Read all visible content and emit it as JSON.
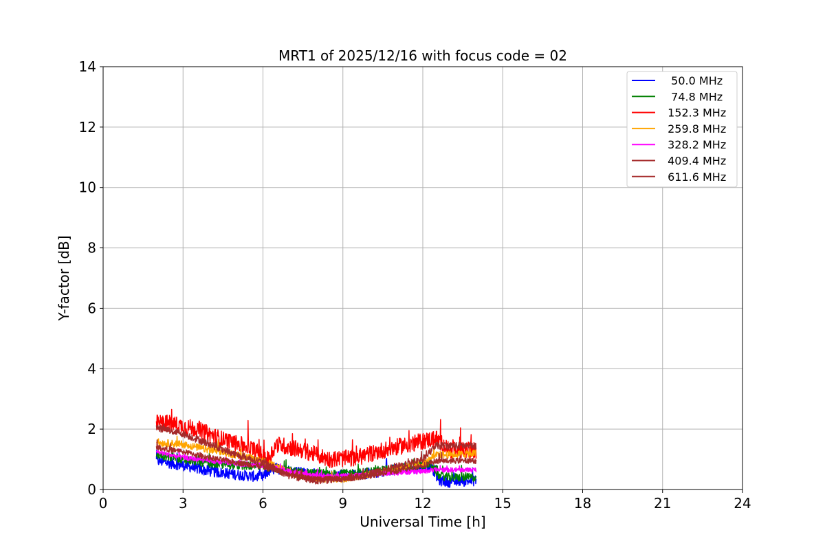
{
  "chart_data": {
    "type": "line",
    "title": "MRT1 of 2025/12/16 with focus code = 02",
    "xlabel": "Universal Time [h]",
    "ylabel": "Y-factor [dB]",
    "xlim": [
      0,
      24
    ],
    "ylim": [
      0,
      14
    ],
    "xticks": [
      0,
      3,
      6,
      9,
      12,
      15,
      18,
      21,
      24
    ],
    "yticks": [
      0,
      2,
      4,
      6,
      8,
      10,
      12,
      14
    ],
    "grid": true,
    "legend_position": "top-right",
    "x_range_hours": [
      2.0,
      14.0
    ],
    "series": [
      {
        "name": "  50.0 MHz",
        "color": "#0000ff",
        "noise": 0.18,
        "x": [
          2.0,
          3.0,
          4.0,
          5.0,
          6.0,
          6.2,
          6.5,
          7.5,
          8.5,
          9.5,
          10.5,
          11.5,
          12.3,
          12.6,
          13.0,
          14.0
        ],
        "y": [
          0.95,
          0.8,
          0.6,
          0.5,
          0.4,
          0.6,
          0.7,
          0.55,
          0.45,
          0.5,
          0.6,
          0.7,
          0.75,
          0.3,
          0.25,
          0.3
        ]
      },
      {
        "name": "  74.8 MHz",
        "color": "#008000",
        "noise": 0.14,
        "x": [
          2.0,
          3.0,
          4.0,
          5.0,
          6.0,
          6.5,
          7.5,
          8.5,
          9.5,
          10.5,
          11.5,
          12.3,
          12.6,
          13.0,
          14.0
        ],
        "y": [
          1.15,
          1.0,
          0.85,
          0.8,
          0.75,
          0.7,
          0.55,
          0.5,
          0.55,
          0.65,
          0.75,
          0.85,
          0.45,
          0.4,
          0.4
        ]
      },
      {
        "name": " 152.3 MHz",
        "color": "#ff0000",
        "noise": 0.28,
        "x": [
          2.0,
          2.5,
          3.5,
          4.5,
          5.5,
          6.2,
          6.5,
          7.5,
          8.5,
          9.5,
          10.5,
          11.5,
          12.5,
          13.0,
          14.0
        ],
        "y": [
          2.2,
          2.2,
          2.0,
          1.65,
          1.4,
          1.0,
          1.5,
          1.3,
          1.0,
          1.05,
          1.3,
          1.5,
          1.7,
          1.3,
          1.3
        ]
      },
      {
        "name": " 259.8 MHz",
        "color": "#ffa500",
        "noise": 0.12,
        "x": [
          2.0,
          3.0,
          4.0,
          5.0,
          6.0,
          7.0,
          8.0,
          9.0,
          10.0,
          11.0,
          12.0,
          12.5,
          13.0,
          14.0
        ],
        "y": [
          1.55,
          1.5,
          1.3,
          1.15,
          0.95,
          0.55,
          0.35,
          0.35,
          0.5,
          0.7,
          0.85,
          1.15,
          1.15,
          1.2
        ]
      },
      {
        "name": " 328.2 MHz",
        "color": "#ff00ff",
        "noise": 0.08,
        "x": [
          2.0,
          3.0,
          4.0,
          5.0,
          6.0,
          7.0,
          8.0,
          9.0,
          10.0,
          11.0,
          12.0,
          12.5,
          13.0,
          14.0
        ],
        "y": [
          1.25,
          1.05,
          0.95,
          0.85,
          0.8,
          0.6,
          0.45,
          0.45,
          0.5,
          0.55,
          0.6,
          0.65,
          0.65,
          0.65
        ]
      },
      {
        "name": " 409.4 MHz",
        "color": "#a52a2a",
        "noise": 0.09,
        "x": [
          2.0,
          3.0,
          4.0,
          5.0,
          6.0,
          7.0,
          8.0,
          9.0,
          10.0,
          11.0,
          12.0,
          12.5,
          13.0,
          14.0
        ],
        "y": [
          1.4,
          1.25,
          1.05,
          0.9,
          0.75,
          0.5,
          0.35,
          0.35,
          0.45,
          0.6,
          0.8,
          0.95,
          0.95,
          0.95
        ]
      },
      {
        "name": " 611.6 MHz",
        "color": "#a52a2a",
        "noise": 0.12,
        "x": [
          2.0,
          3.0,
          4.0,
          5.0,
          6.0,
          7.0,
          8.0,
          9.0,
          10.0,
          11.0,
          12.0,
          12.5,
          13.0,
          14.0
        ],
        "y": [
          2.05,
          1.85,
          1.5,
          1.15,
          0.9,
          0.45,
          0.3,
          0.35,
          0.5,
          0.75,
          1.0,
          1.45,
          1.45,
          1.45
        ]
      }
    ]
  }
}
